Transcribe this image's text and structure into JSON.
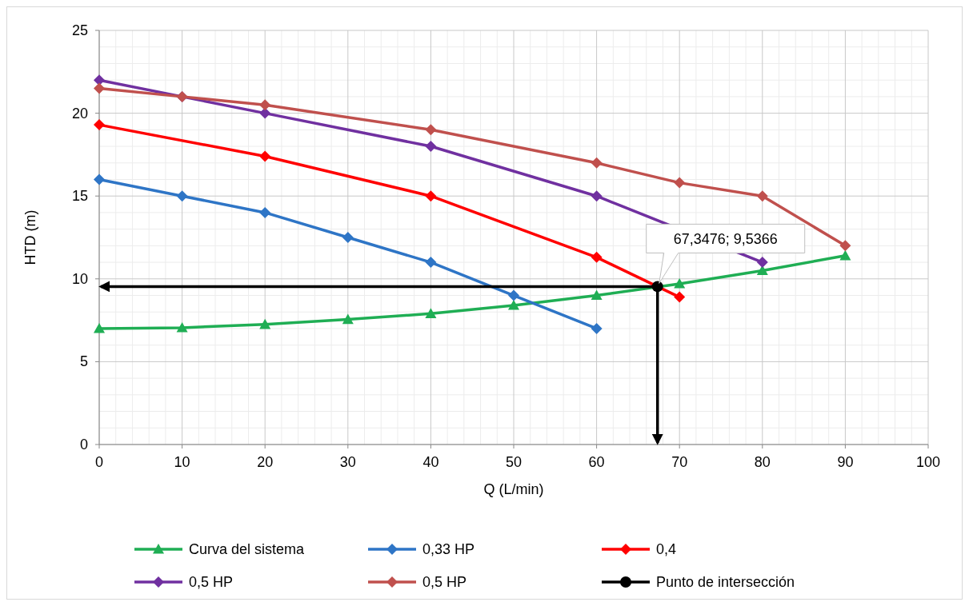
{
  "chart_data": {
    "type": "line",
    "xlabel": "Q (L/min)",
    "ylabel": "HTD (m)",
    "xlim": [
      0,
      100
    ],
    "xticks": [
      0,
      10,
      20,
      30,
      40,
      50,
      60,
      70,
      80,
      90,
      100
    ],
    "ylim": [
      0,
      25
    ],
    "yticks": [
      0,
      5,
      10,
      15,
      20,
      25
    ],
    "grid": true,
    "legend": "bottom",
    "series": [
      {
        "name": "Curva del sistema",
        "color": "#1fae54",
        "marker": "triangle",
        "x": [
          0,
          10,
          20,
          30,
          40,
          50,
          60,
          70,
          80,
          90
        ],
        "values": [
          7.0,
          7.05,
          7.25,
          7.55,
          7.9,
          8.4,
          9.0,
          9.7,
          10.5,
          11.4
        ]
      },
      {
        "name": "0,33 HP",
        "color": "#2e75c6",
        "marker": "diamond",
        "x": [
          0,
          10,
          20,
          30,
          40,
          50,
          60
        ],
        "values": [
          16,
          15,
          14,
          12.5,
          11,
          9,
          7
        ]
      },
      {
        "name": "0,4",
        "color": "#ff0000",
        "marker": "diamond",
        "x": [
          0,
          20,
          40,
          60,
          70
        ],
        "values": [
          19.3,
          17.4,
          15,
          11.3,
          8.9
        ]
      },
      {
        "name": "0,5 HP",
        "color": "#7030a0",
        "marker": "diamond",
        "x": [
          0,
          10,
          20,
          40,
          60,
          80
        ],
        "values": [
          22,
          21,
          20,
          18,
          15,
          11
        ]
      },
      {
        "name": "0,5 HP",
        "color": "#c0504d",
        "marker": "diamond",
        "x": [
          0,
          10,
          20,
          40,
          60,
          70,
          80,
          90
        ],
        "values": [
          21.5,
          21,
          20.5,
          19,
          17,
          15.8,
          15,
          12
        ]
      },
      {
        "name": "Punto de intersección",
        "color": "#000000",
        "marker": "circle",
        "x": [
          67.3476
        ],
        "values": [
          9.5366
        ]
      }
    ],
    "annotations": [
      {
        "text": "67,3476; 9,5366",
        "x": 67.3476,
        "y": 9.5366
      }
    ]
  }
}
